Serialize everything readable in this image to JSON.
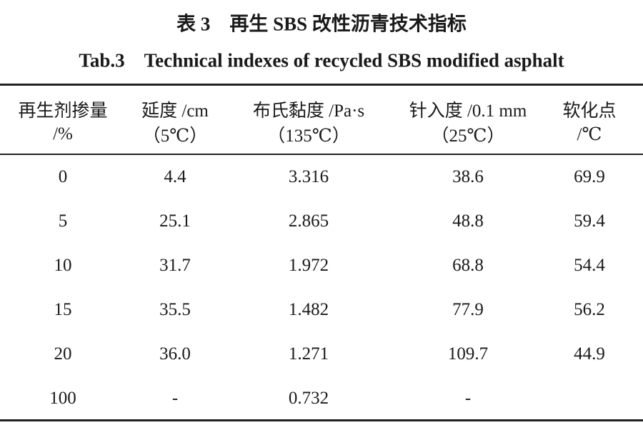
{
  "title_cn": "表 3　再生 SBS 改性沥青技术指标",
  "title_en": "Tab.3　Technical indexes of recycled SBS modified asphalt",
  "table": {
    "header": [
      [
        "再生剂掺量",
        "/%"
      ],
      [
        "延度 /cm",
        "（5℃）"
      ],
      [
        "布氏黏度 /Pa·s",
        "（135℃）"
      ],
      [
        "针入度 /0.1 mm",
        "（25℃）"
      ],
      [
        "软化点",
        "/℃"
      ]
    ],
    "rows": [
      [
        "0",
        "4.4",
        "3.316",
        "38.6",
        "69.9"
      ],
      [
        "5",
        "25.1",
        "2.865",
        "48.8",
        "59.4"
      ],
      [
        "10",
        "31.7",
        "1.972",
        "68.8",
        "54.4"
      ],
      [
        "15",
        "35.5",
        "1.482",
        "77.9",
        "56.2"
      ],
      [
        "20",
        "36.0",
        "1.271",
        "109.7",
        "44.9"
      ],
      [
        "100",
        "-",
        "0.732",
        "-",
        ""
      ]
    ]
  }
}
